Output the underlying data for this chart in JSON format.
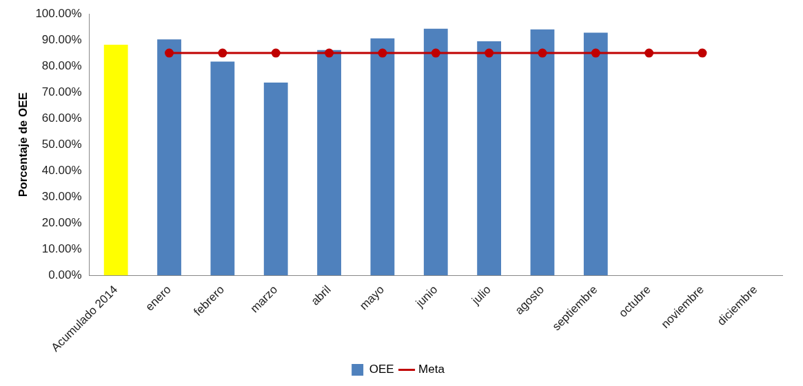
{
  "chart_data": {
    "type": "bar",
    "ylabel": "Porcentaje de OEE",
    "categories": [
      "Acumulado 2014",
      "enero",
      "febrero",
      "marzo",
      "abril",
      "mayo",
      "junio",
      "julio",
      "agosto",
      "septiembre",
      "octubre",
      "noviembre",
      "diciembre"
    ],
    "series": [
      {
        "name": "OEE",
        "color": "#4f81bd",
        "colors": [
          "#ffff00",
          "#4f81bd",
          "#4f81bd",
          "#4f81bd",
          "#4f81bd",
          "#4f81bd",
          "#4f81bd",
          "#4f81bd",
          "#4f81bd",
          "#4f81bd",
          "#4f81bd",
          "#4f81bd",
          "#4f81bd"
        ],
        "values": [
          88.2,
          90.2,
          81.7,
          73.7,
          86.1,
          90.6,
          94.3,
          89.5,
          94.0,
          92.8,
          null,
          null,
          null
        ]
      },
      {
        "name": "Meta",
        "type": "line",
        "color": "#c00000",
        "marker": "circle",
        "values": [
          null,
          85,
          85,
          85,
          85,
          85,
          85,
          85,
          85,
          85,
          85,
          85,
          null
        ]
      }
    ],
    "ylim": [
      0,
      100
    ],
    "yticks": [
      {
        "value": 0,
        "label": "0.00%"
      },
      {
        "value": 10,
        "label": "10.00%"
      },
      {
        "value": 20,
        "label": "20.00%"
      },
      {
        "value": 30,
        "label": "30.00%"
      },
      {
        "value": 40,
        "label": "40.00%"
      },
      {
        "value": 50,
        "label": "50.00%"
      },
      {
        "value": 60,
        "label": "60.00%"
      },
      {
        "value": 70,
        "label": "70.00%"
      },
      {
        "value": 80,
        "label": "80.00%"
      },
      {
        "value": 90,
        "label": "90.00%"
      },
      {
        "value": 100,
        "label": "100.00%"
      }
    ],
    "grid": false,
    "legend": "bottom"
  }
}
